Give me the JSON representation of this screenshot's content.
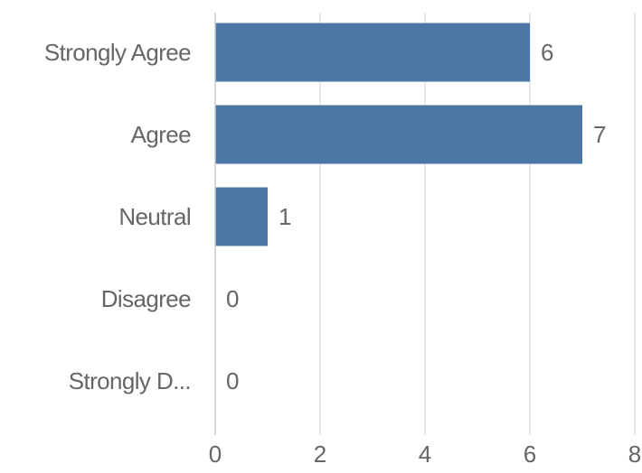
{
  "colors": {
    "bar": "#4a77a6",
    "grid": "#dddddd",
    "axis_line": "#cccccc",
    "text": "#666666",
    "background": "#ffffff"
  },
  "chart_data": {
    "type": "bar",
    "orientation": "horizontal",
    "title": "",
    "xlabel": "",
    "ylabel": "",
    "categories": [
      "Strongly Agree",
      "Agree",
      "Neutral",
      "Disagree",
      "Strongly D..."
    ],
    "values": [
      6,
      7,
      1,
      0,
      0
    ],
    "data_labels": [
      "6",
      "7",
      "1",
      "0",
      "0"
    ],
    "xlim": [
      0,
      8
    ],
    "x_ticks": [
      0,
      2,
      4,
      6,
      8
    ],
    "x_tick_labels": [
      "0",
      "2",
      "4",
      "6",
      "8"
    ],
    "grid": true,
    "legend": "none"
  }
}
